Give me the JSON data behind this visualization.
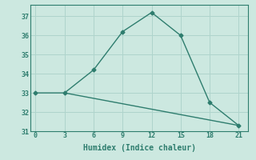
{
  "xlabel": "Humidex (Indice chaleur)",
  "ylabel": "",
  "line1_x": [
    0,
    3,
    6,
    9,
    12,
    15,
    18,
    21
  ],
  "line1_y": [
    33,
    33,
    34.2,
    36.2,
    37.2,
    36.0,
    32.5,
    31.3
  ],
  "line2_x": [
    3,
    21
  ],
  "line2_y": [
    33,
    31.3
  ],
  "line_color": "#2e7d6e",
  "bg_color": "#cce8e0",
  "grid_color": "#afd4cc",
  "xlim": [
    -0.5,
    22
  ],
  "ylim": [
    31,
    37.6
  ],
  "xticks": [
    0,
    3,
    6,
    9,
    12,
    15,
    18,
    21
  ],
  "yticks": [
    31,
    32,
    33,
    34,
    35,
    36,
    37
  ],
  "marker": "D",
  "marker_size": 2.5,
  "line_width": 1.0,
  "tick_fontsize": 6,
  "xlabel_fontsize": 7
}
